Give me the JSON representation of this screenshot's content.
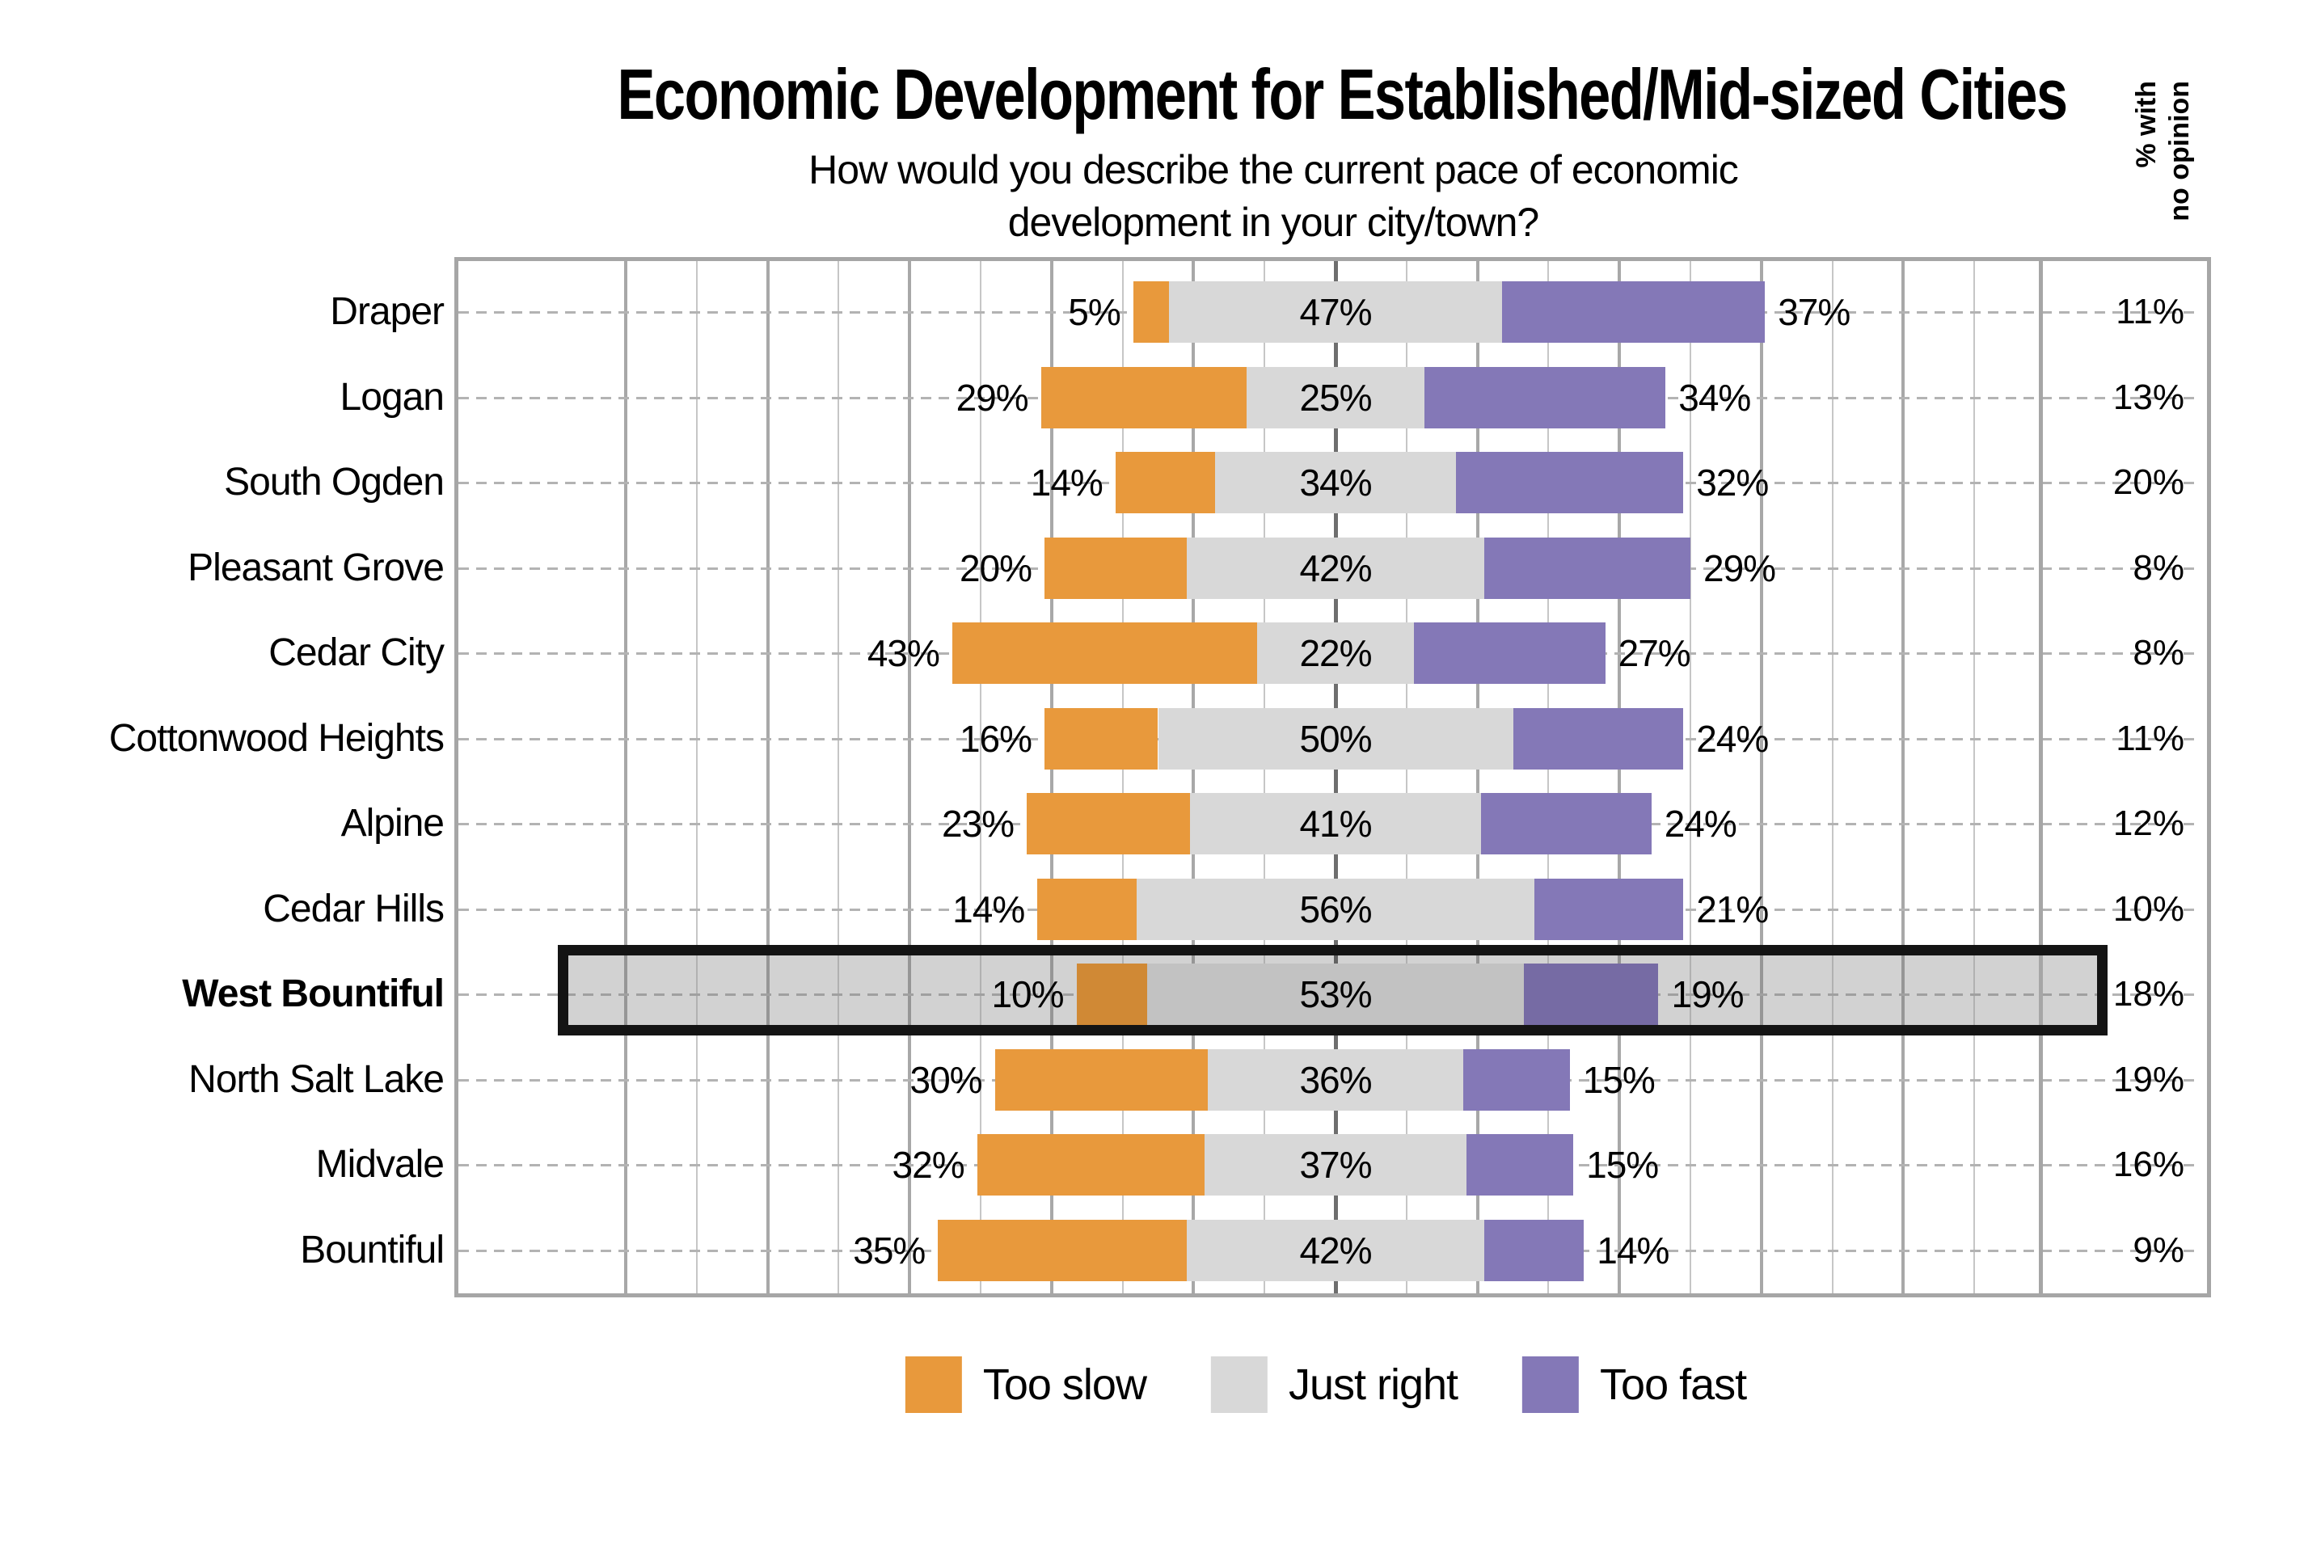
{
  "title": "Economic Development for Established/Mid-sized Cities",
  "subtitle_line1": "How would you describe the current pace of economic",
  "subtitle_line2": "development in your city/town?",
  "right_axis_header": {
    "line1": "% with",
    "line2": "no opinion"
  },
  "legend": {
    "items": [
      {
        "label": "Too slow",
        "color": "#E8993C"
      },
      {
        "label": "Just right",
        "color": "#D8D8D8"
      },
      {
        "label": "Too fast",
        "color": "#8478B7"
      }
    ]
  },
  "colors": {
    "too_slow": "#E8993C",
    "just_right": "#D8D8D8",
    "too_fast": "#8478B7",
    "grid_center": "#6E6E6E",
    "grid_major": "#A8A8A8",
    "grid_minor": "#C6C6C6",
    "plot_border": "#A6A6A6",
    "leader_dash": "#B3B3B3",
    "highlight_border": "#141414",
    "highlight_bg": "#EAEAEA"
  },
  "chart_data": {
    "type": "bar",
    "orientation": "horizontal",
    "variant": "diverging-stacked-centered",
    "title": "Economic Development for Established/Mid-sized Cities",
    "question": "How would you describe the current pace of economic development in your city/town?",
    "categories": [
      "Draper",
      "Logan",
      "South Ogden",
      "Pleasant Grove",
      "Cedar City",
      "Cottonwood Heights",
      "Alpine",
      "Cedar Hills",
      "West Bountiful",
      "North Salt Lake",
      "Midvale",
      "Bountiful"
    ],
    "series": [
      {
        "name": "Too slow",
        "values": [
          5,
          29,
          14,
          20,
          43,
          16,
          23,
          14,
          10,
          30,
          32,
          35
        ]
      },
      {
        "name": "Just right",
        "values": [
          47,
          25,
          34,
          42,
          22,
          50,
          41,
          56,
          53,
          36,
          37,
          42
        ]
      },
      {
        "name": "Too fast",
        "values": [
          37,
          34,
          32,
          29,
          27,
          24,
          24,
          21,
          19,
          15,
          15,
          14
        ]
      }
    ],
    "no_opinion_column": {
      "header": "% with no opinion",
      "values": [
        11,
        13,
        20,
        8,
        8,
        11,
        12,
        10,
        18,
        19,
        16,
        9
      ]
    },
    "highlighted_category": "West Bountiful",
    "value_suffix": "%",
    "x_gridline_step_percent": 10,
    "x_range_percent": [
      -100,
      100
    ],
    "legend_position": "bottom",
    "grid": true
  }
}
